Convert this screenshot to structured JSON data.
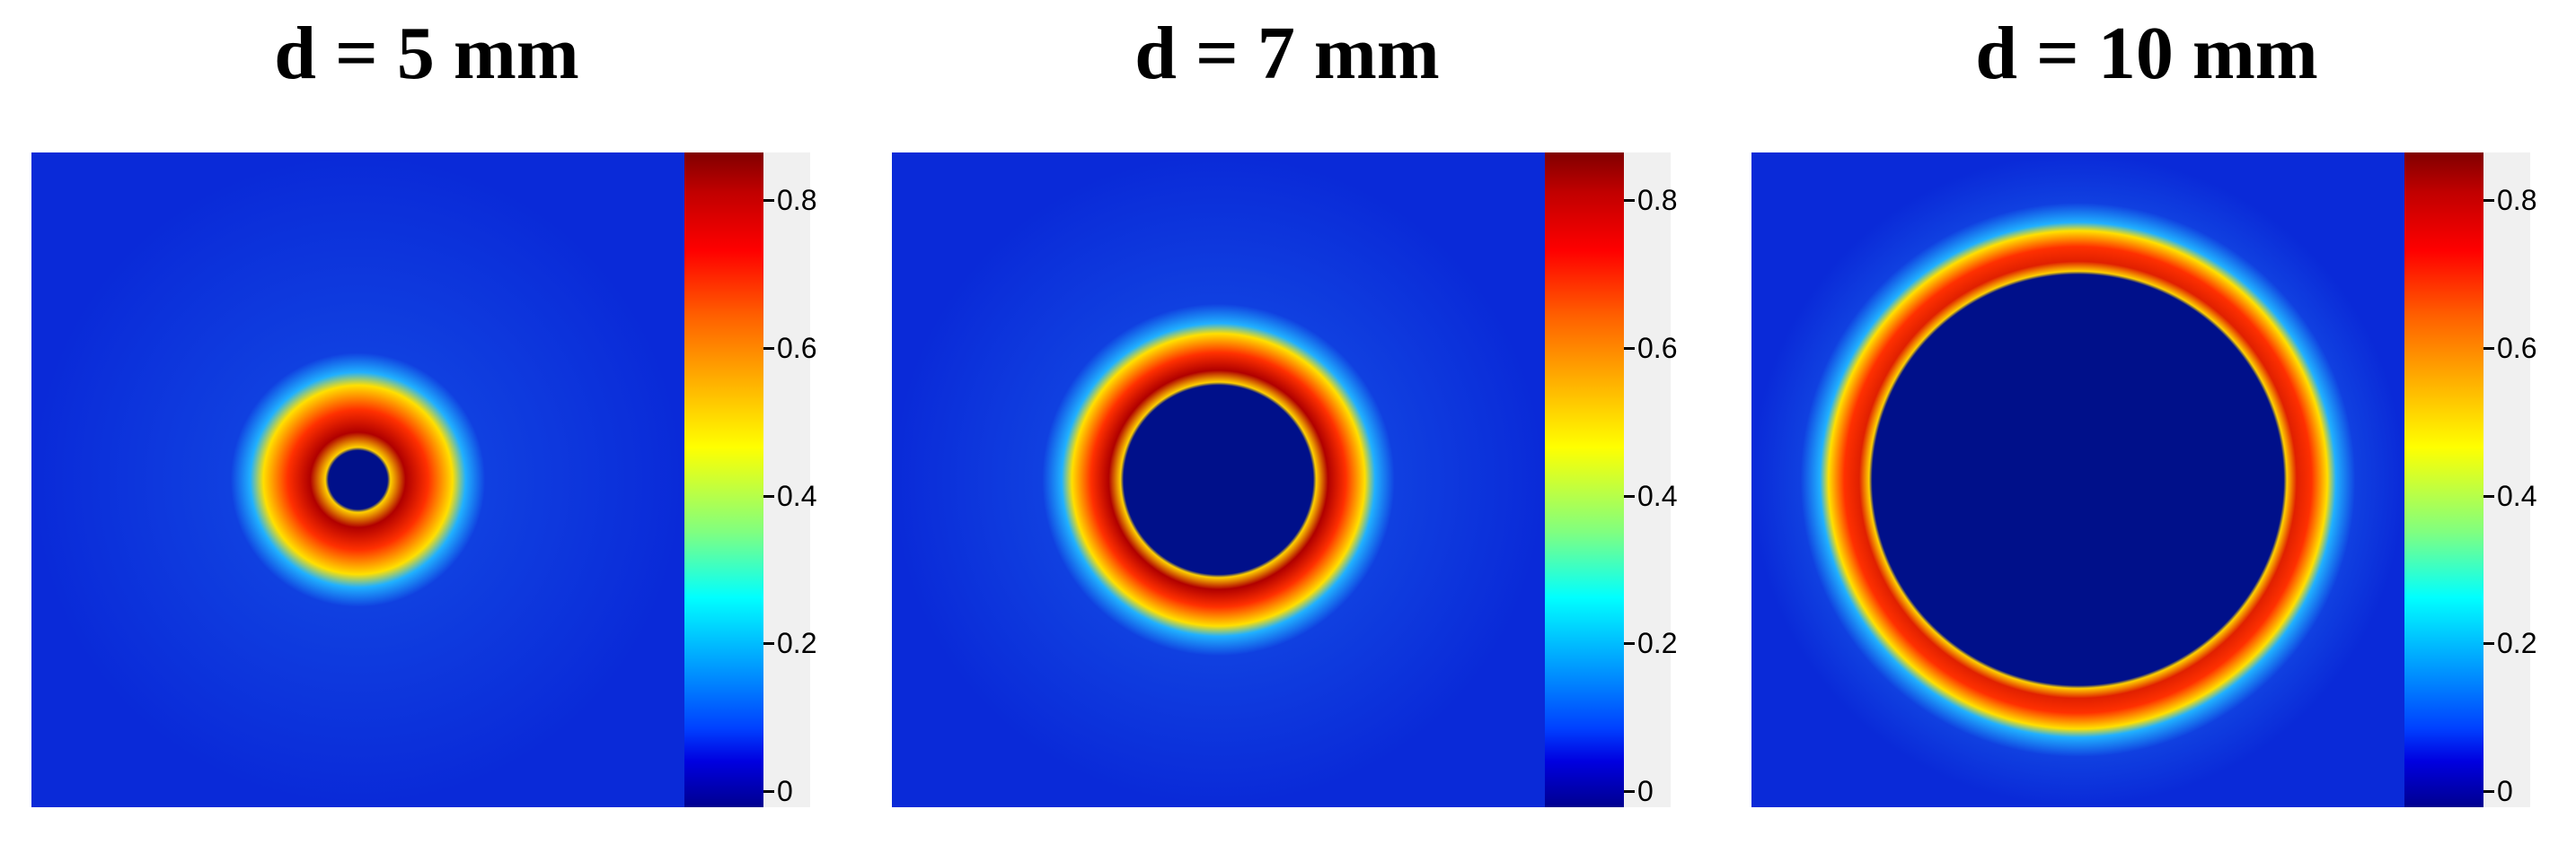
{
  "chart_data": [
    {
      "type": "heatmap",
      "title": "d = 5 mm",
      "ring": {
        "outer_radius_frac": 0.165,
        "inner_radius_frac": 0.05,
        "peak_intensity": 0.8
      },
      "colorbar": {
        "min": 0,
        "max": 0.85,
        "ticks": [
          "0",
          "0.2",
          "0.4",
          "0.6",
          "0.8"
        ],
        "colormap": "jet"
      }
    },
    {
      "type": "heatmap",
      "title": "d = 7 mm",
      "ring": {
        "outer_radius_frac": 0.24,
        "inner_radius_frac": 0.15,
        "peak_intensity": 0.8
      },
      "colorbar": {
        "min": 0,
        "max": 0.85,
        "ticks": [
          "0",
          "0.2",
          "0.4",
          "0.6",
          "0.8"
        ],
        "colormap": "jet"
      }
    },
    {
      "type": "heatmap",
      "title": "d = 10 mm",
      "ring": {
        "outer_radius_frac": 0.395,
        "inner_radius_frac": 0.32,
        "peak_intensity": 0.7
      },
      "colorbar": {
        "min": 0,
        "max": 0.85,
        "ticks": [
          "0",
          "0.2",
          "0.4",
          "0.6",
          "0.8"
        ],
        "colormap": "jet"
      }
    }
  ],
  "colors": {
    "background_field": "#0a2ad8",
    "ring_hot": "#b00000"
  }
}
